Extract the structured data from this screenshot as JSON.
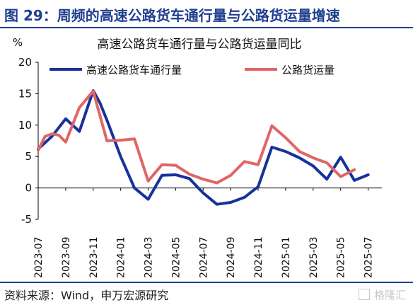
{
  "figure": {
    "title": "图 29：周频的高速公路货车通行量与公路货运量增速",
    "source": "资料来源：Wind，申万宏源研究",
    "watermark": "格隆汇"
  },
  "chart_data": {
    "type": "line",
    "title": "高速公路货车通行量与公路货运量同比",
    "ylabel": "%",
    "ylim": [
      -5,
      20
    ],
    "yticks": [
      -5,
      0,
      5,
      10,
      15,
      20
    ],
    "x_tick_labels": [
      "2023-07",
      "2023-09",
      "2023-11",
      "2024-01",
      "2024-03",
      "2024-05",
      "2024-07",
      "2024-09",
      "2024-11",
      "2025-01",
      "2025-03",
      "2025-05",
      "2025-07"
    ],
    "legend": {
      "placement": "top"
    },
    "series": [
      {
        "name": "高速公路货车通行量",
        "color": "#17329a",
        "x": [
          0,
          1,
          2,
          3,
          4,
          4.5,
          5,
          6,
          7,
          8,
          9,
          10,
          11,
          12,
          13,
          14,
          15,
          16,
          17,
          18,
          19,
          20,
          21,
          22,
          23,
          24
        ],
        "values": [
          6.2,
          8.2,
          11.0,
          9.0,
          15.5,
          13.5,
          10.8,
          5.0,
          0.0,
          -1.8,
          2.0,
          2.1,
          1.5,
          -0.8,
          -2.6,
          -2.3,
          -1.5,
          0.2,
          6.5,
          5.8,
          4.8,
          3.5,
          1.4,
          4.9,
          1.2,
          2.1
        ]
      },
      {
        "name": "公路货运量",
        "color": "#e06666",
        "x": [
          0,
          0.5,
          1,
          1.5,
          2,
          3,
          4,
          5,
          6,
          7,
          8,
          9,
          10,
          11,
          12,
          13,
          14,
          15,
          16,
          17,
          18,
          19,
          20,
          21,
          22,
          23
        ],
        "values": [
          6.0,
          8.2,
          8.6,
          8.4,
          7.3,
          12.8,
          15.4,
          7.5,
          7.6,
          7.8,
          1.1,
          3.7,
          3.6,
          2.2,
          1.4,
          0.8,
          2.0,
          4.2,
          3.7,
          9.9,
          8.0,
          5.8,
          4.8,
          4.0,
          1.8,
          2.9
        ]
      }
    ]
  }
}
